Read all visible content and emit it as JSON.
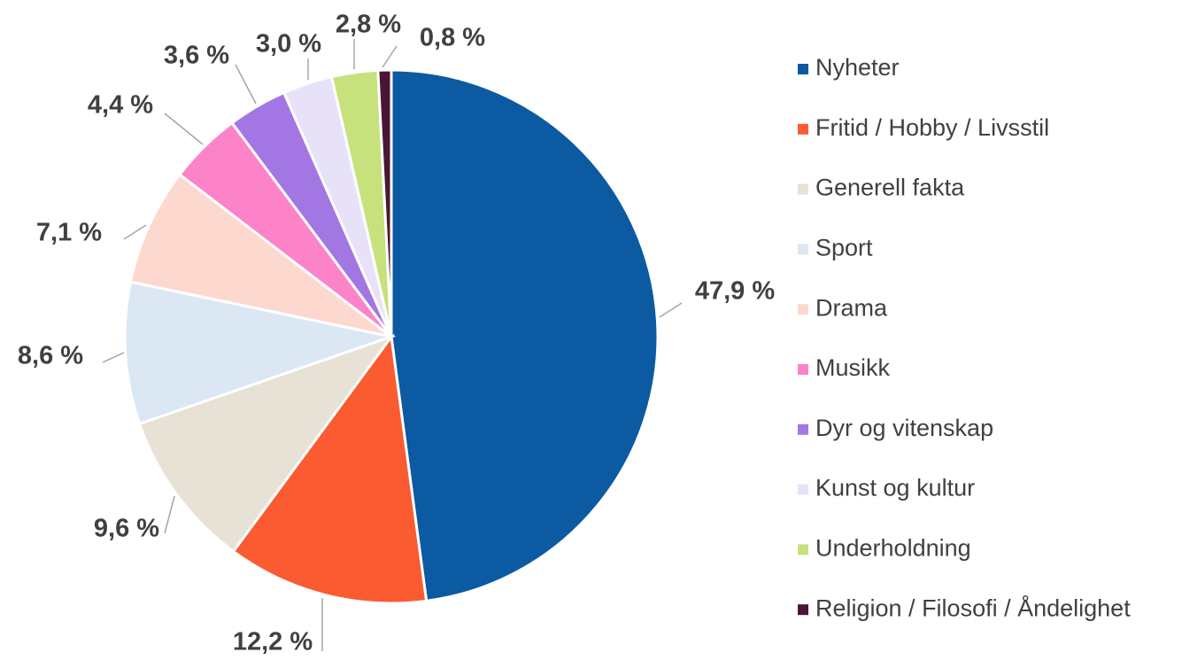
{
  "chart_data": {
    "type": "pie",
    "title": "",
    "legend_position": "right",
    "slices": [
      {
        "name": "Nyheter",
        "value": 47.9,
        "label": "47,9 %",
        "color": "#0b5aa2"
      },
      {
        "name": "Fritid / Hobby / Livsstil",
        "value": 12.2,
        "label": "12,2 %",
        "color": "#fb5b30"
      },
      {
        "name": "Generell fakta",
        "value": 9.6,
        "label": "9,6 %",
        "color": "#e7e1d6"
      },
      {
        "name": "Sport",
        "value": 8.6,
        "label": "8,6 %",
        "color": "#dbe8f4"
      },
      {
        "name": "Drama",
        "value": 7.1,
        "label": "7,1 %",
        "color": "#fdd8ce"
      },
      {
        "name": "Musikk",
        "value": 4.4,
        "label": "4,4 %",
        "color": "#fd83c8"
      },
      {
        "name": "Dyr og vitenskap",
        "value": 3.6,
        "label": "3,6 %",
        "color": "#a377e3"
      },
      {
        "name": "Kunst og kultur",
        "value": 3.0,
        "label": "3,0 %",
        "color": "#e8e2f9"
      },
      {
        "name": "Underholdning",
        "value": 2.8,
        "label": "2,8 %",
        "color": "#c7e17c"
      },
      {
        "name": "Religion / Filosofi / Åndelighet",
        "value": 0.8,
        "label": "0,8 %",
        "color": "#4b1535"
      }
    ]
  }
}
